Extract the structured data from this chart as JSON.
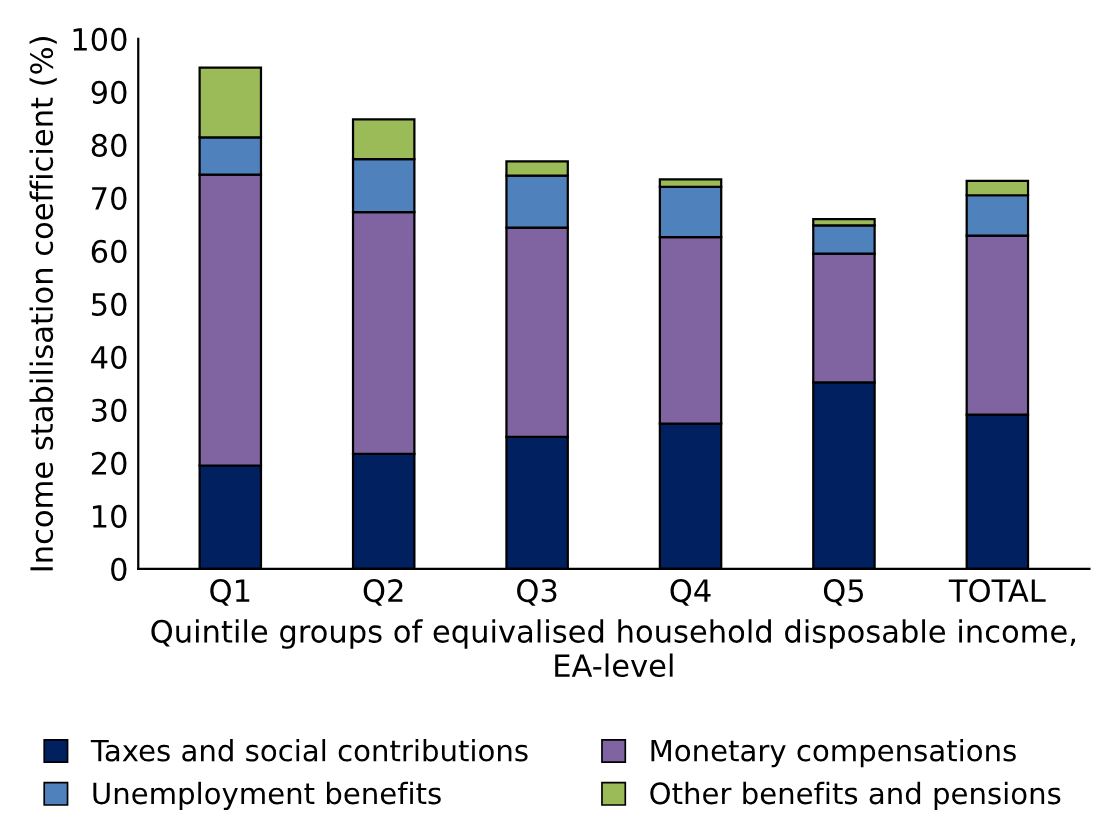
{
  "chart_data": {
    "type": "bar",
    "stacked": true,
    "xlabel": "Quintile groups of equivalised household disposable income, EA-level",
    "ylabel": "Income stabilisation coefficient (%)",
    "categories": [
      "Q1",
      "Q2",
      "Q3",
      "Q4",
      "Q5",
      "TOTAL"
    ],
    "series": [
      {
        "name": "Taxes and social contributions",
        "color": "#002060",
        "values": [
          19.5,
          21.7,
          24.9,
          27.4,
          35.2,
          29.1
        ]
      },
      {
        "name": "Monetary compensations",
        "color": "#8064a2",
        "values": [
          54.9,
          45.6,
          39.5,
          35.2,
          24.3,
          33.8
        ]
      },
      {
        "name": "Unemployment benefits",
        "color": "#4f81bd",
        "values": [
          7.0,
          10.0,
          9.8,
          9.5,
          5.3,
          7.6
        ]
      },
      {
        "name": "Other benefits and pensions",
        "color": "#9bbb59",
        "values": [
          13.2,
          7.5,
          2.7,
          1.4,
          1.2,
          2.7
        ]
      }
    ],
    "ylim": [
      0,
      100
    ],
    "yticks": [
      0,
      10,
      20,
      30,
      40,
      50,
      60,
      70,
      80,
      90,
      100
    ],
    "grid": false,
    "legend": "bottom"
  }
}
